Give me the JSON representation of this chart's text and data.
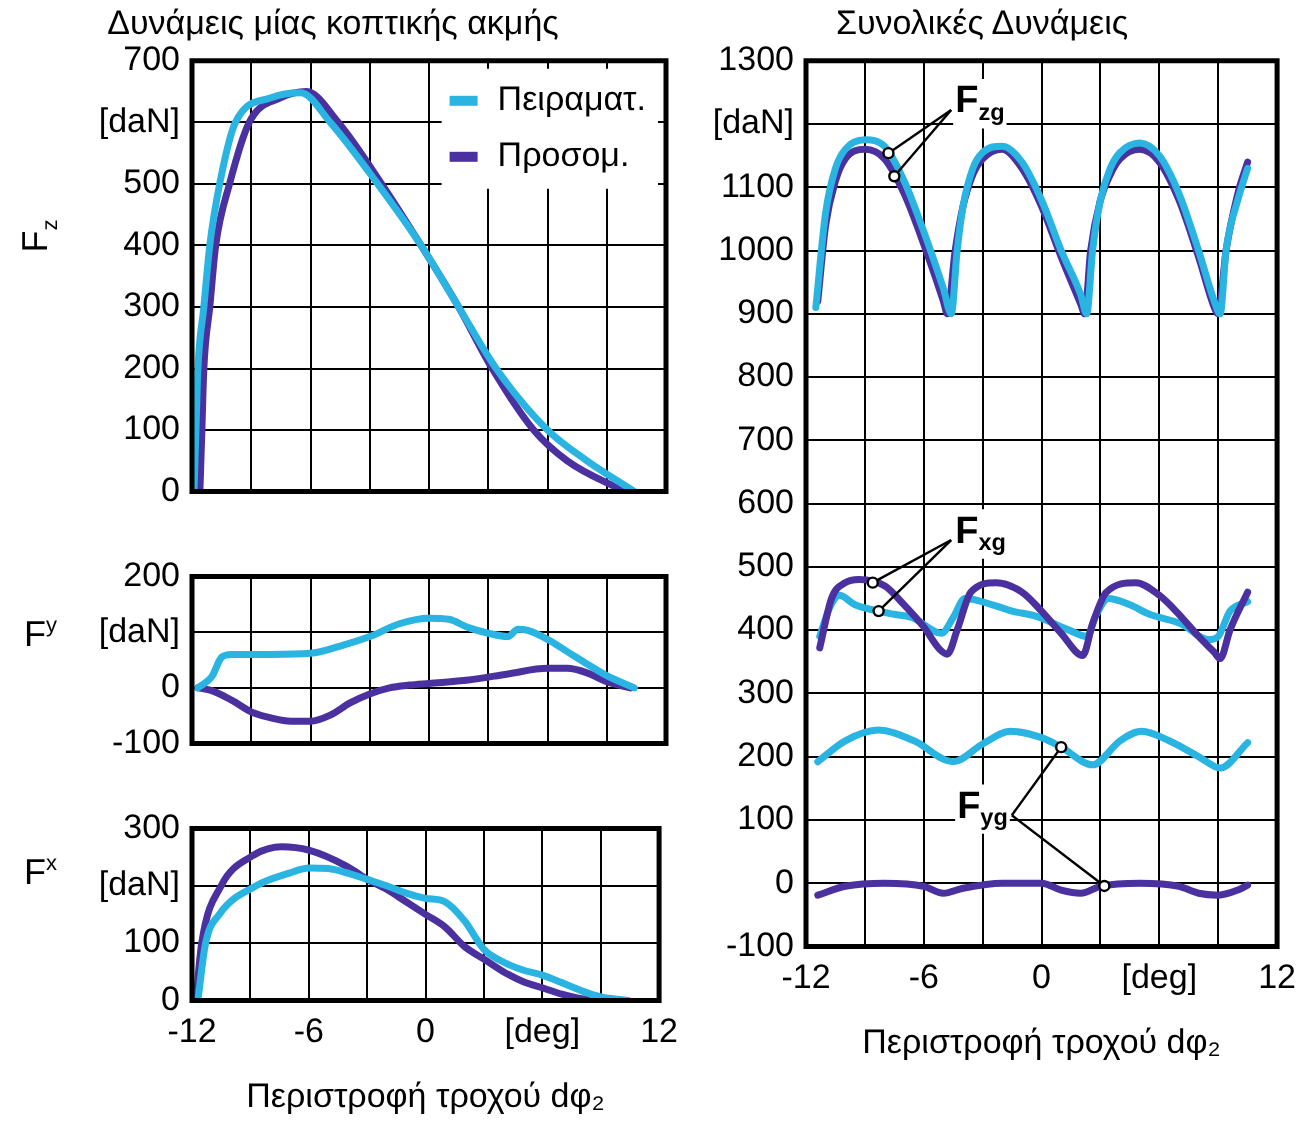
{
  "chart_data": [
    {
      "type": "line",
      "title": "Δυνάμεις μίας κοπτικής ακμής",
      "ylabel": "F$_{z}$",
      "xlim": [
        -12,
        12
      ],
      "xticks": [
        -12,
        -9,
        -6,
        -3,
        0,
        3,
        6,
        9,
        12
      ],
      "ylim": [
        0,
        700
      ],
      "yticks": [
        0,
        100,
        200,
        300,
        400,
        500,
        {
          "value": 600,
          "label": "[daN]"
        },
        700
      ],
      "tick_labels": "y",
      "grid": true,
      "legend": "top right",
      "marker": "none",
      "line_style": "solid",
      "series": [
        {
          "name": "Πειραματ.",
          "color": "#2ab4e2",
          "x": [
            -11.9,
            -11.8,
            -11.7,
            -11.4,
            -11.1,
            -10.6,
            -9.8,
            -8,
            -6.5,
            -5,
            -2.6,
            -0.4,
            1.5,
            3.4,
            6,
            8,
            10.4
          ],
          "values": [
            0,
            100,
            200,
            300,
            400,
            500,
            600,
            640,
            648,
            600,
            500,
            400,
            300,
            200,
            100,
            50,
            0
          ]
        },
        {
          "name": "Προσομ.",
          "color": "#4b31a0",
          "x": [
            -11.6,
            -11.5,
            -11.4,
            -11.1,
            -10.8,
            -10.1,
            -9.1,
            -7.5,
            -6.2,
            -4.6,
            -2.4,
            -0.4,
            1.5,
            3.2,
            5.3,
            7,
            9.9
          ],
          "values": [
            0,
            100,
            200,
            300,
            400,
            500,
            600,
            640,
            650,
            600,
            500,
            400,
            300,
            200,
            100,
            50,
            0
          ]
        }
      ]
    },
    {
      "type": "line",
      "ylabel": "F$^{y}$",
      "xlim": [
        -12,
        12
      ],
      "xticks": [
        -12,
        -9,
        -6,
        -3,
        0,
        3,
        6,
        9,
        12
      ],
      "ylim": [
        -100,
        200
      ],
      "yticks": [
        -100,
        0,
        {
          "value": 100,
          "label": "[daN]"
        },
        200
      ],
      "tick_labels": "y",
      "grid": true,
      "marker": "none",
      "line_style": "solid",
      "series": [
        {
          "color": "#2ab4e2",
          "x": [
            -11.7,
            -11,
            -10.5,
            -10,
            -8,
            -6,
            -4.5,
            -3,
            -1.5,
            0,
            1,
            2,
            3,
            4,
            4.5,
            5,
            6,
            7,
            8,
            9,
            10.4
          ],
          "values": [
            0,
            20,
            55,
            60,
            60,
            62,
            75,
            92,
            115,
            125,
            123,
            108,
            98,
            92,
            105,
            103,
            87,
            65,
            43,
            22,
            0
          ]
        },
        {
          "color": "#4b31a0",
          "x": [
            -11.7,
            -11,
            -10,
            -9,
            -8,
            -7,
            -6,
            -5,
            -4,
            -3,
            -2,
            -1,
            0,
            2,
            4,
            6,
            7,
            8,
            9,
            10.2
          ],
          "values": [
            0,
            -5,
            -22,
            -43,
            -54,
            -60,
            -60,
            -49,
            -27,
            -11,
            0,
            5,
            8,
            14,
            25,
            35,
            35,
            27,
            11,
            0
          ]
        }
      ]
    },
    {
      "type": "line",
      "ylabel": "F$^{x}$",
      "xlabel": "Περιστροφή τροχού dφ₂",
      "xlim": [
        -12,
        12
      ],
      "xticks": [
        -12,
        {
          "value": -9,
          "label": null
        },
        -6,
        {
          "value": -3,
          "label": null
        },
        0,
        {
          "value": 3,
          "label": null
        },
        {
          "value": 6,
          "label": "[deg]"
        },
        {
          "value": 9,
          "label": null
        },
        12
      ],
      "ylim": [
        0,
        300
      ],
      "yticks": [
        0,
        100,
        {
          "value": 200,
          "label": "[daN]"
        },
        300
      ],
      "grid": true,
      "marker": "none",
      "line_style": "solid",
      "series": [
        {
          "color": "#2ab4e2",
          "x": [
            -11.7,
            -11.3,
            -10.6,
            -8.7,
            -7,
            -6,
            -5,
            -4,
            -3,
            -2,
            -1,
            0,
            1,
            2,
            3,
            4,
            5,
            6,
            7,
            8,
            9,
            10.4
          ],
          "values": [
            0,
            100,
            150,
            200,
            222,
            231,
            230,
            222,
            211,
            200,
            187,
            178,
            172,
            139,
            89,
            67,
            53,
            44,
            31,
            17,
            6,
            0
          ]
        },
        {
          "color": "#4b31a0",
          "x": [
            -11.8,
            -11.5,
            -10.5,
            -9,
            -7.4,
            -6,
            -4,
            -3,
            -2,
            -1,
            0,
            1,
            2,
            3,
            4,
            5,
            6,
            7,
            8,
            9
          ],
          "values": [
            0,
            100,
            200,
            250,
            268,
            262,
            233,
            211,
            194,
            172,
            150,
            128,
            94,
            72,
            50,
            33,
            22,
            11,
            3,
            0
          ]
        }
      ]
    },
    {
      "type": "line",
      "title": "Συνολικές Δυνάμεις",
      "xlabel": "Περιστροφή τροχού dφ₂",
      "xlim": [
        -12,
        12
      ],
      "xticks": [
        -12,
        {
          "value": -9,
          "label": null
        },
        -6,
        {
          "value": -3,
          "label": null
        },
        0,
        {
          "value": 3,
          "label": null
        },
        {
          "value": 6,
          "label": "[deg]"
        },
        {
          "value": 9,
          "label": null
        },
        12
      ],
      "ylim": [
        -100,
        1300
      ],
      "yticks": [
        -100,
        0,
        100,
        200,
        300,
        400,
        500,
        600,
        700,
        800,
        900,
        1000,
        1100,
        {
          "value": 1200,
          "label": "[daN]"
        },
        1300
      ],
      "grid": true,
      "marker": "none",
      "line_style": "solid",
      "annotations": [
        {
          "text": "F$_{zg}$",
          "x": -7.8,
          "y": 1154
        },
        {
          "text": "F$_{xg}$",
          "x": -8.6,
          "y": 475
        },
        {
          "text": "F$_{yg}$",
          "x": 1.0,
          "y": 215
        }
      ],
      "series": [
        {
          "color": "#2ab4e2",
          "x": [
            -11.5,
            -11,
            -10.5,
            -10,
            -9,
            -8,
            -7,
            -6,
            -5,
            -4.6,
            -4.3,
            -4,
            -3.5,
            -3,
            -2,
            -1,
            0,
            1,
            2,
            2.3,
            2.6,
            3,
            3.5,
            4,
            5,
            6,
            7,
            8,
            8.8,
            9.1,
            9.4,
            10,
            10.5
          ],
          "values": [
            910,
            1060,
            1130,
            1160,
            1175,
            1165,
            1110,
            1030,
            940,
            900,
            1000,
            1070,
            1130,
            1155,
            1165,
            1140,
            1080,
            1000,
            930,
            900,
            1000,
            1080,
            1130,
            1155,
            1170,
            1150,
            1090,
            1000,
            920,
            900,
            1000,
            1080,
            1130
          ]
        },
        {
          "color": "#4b31a0",
          "x": [
            -11.4,
            -11,
            -10.5,
            -10,
            -9,
            -8,
            -7,
            -6,
            -5,
            -4.8,
            -4.4,
            -4,
            -3.5,
            -3,
            -2,
            -1,
            0,
            1,
            2,
            2.2,
            2.5,
            3,
            3.5,
            4,
            5,
            6,
            7,
            8,
            8.8,
            9,
            9.4,
            10,
            10.5
          ],
          "values": [
            920,
            1040,
            1110,
            1145,
            1160,
            1145,
            1090,
            1010,
            920,
            900,
            1000,
            1070,
            1120,
            1145,
            1160,
            1130,
            1070,
            990,
            915,
            900,
            1000,
            1080,
            1120,
            1145,
            1160,
            1140,
            1080,
            990,
            910,
            900,
            1000,
            1090,
            1140
          ]
        },
        {
          "color": "#4b31a0",
          "x": [
            -11.3,
            -10.7,
            -10,
            -9.3,
            -8,
            -7,
            -6,
            -5.2,
            -4.8,
            -4.3,
            -3.6,
            -2.3,
            -1,
            0,
            1,
            2.1,
            2.6,
            3.3,
            4.8,
            6,
            7,
            8,
            8.8,
            9.1,
            9.6,
            10.5
          ],
          "values": [
            372,
            450,
            475,
            480,
            470,
            440,
            405,
            370,
            362,
            400,
            460,
            475,
            460,
            430,
            395,
            360,
            410,
            460,
            475,
            455,
            425,
            390,
            365,
            355,
            400,
            460
          ]
        },
        {
          "color": "#2ab4e2",
          "x": [
            -11.3,
            -10.8,
            -10.3,
            -9.5,
            -8.6,
            -7.5,
            -6.6,
            -5.1,
            -4.5,
            -3.9,
            -2.5,
            -1.5,
            -0.3,
            1.4,
            2.3,
            2.8,
            3.4,
            4.5,
            5.5,
            7.1,
            8.5,
            9,
            9.6,
            10.5
          ],
          "values": [
            390,
            435,
            455,
            440,
            432,
            425,
            420,
            395,
            420,
            450,
            440,
            430,
            422,
            400,
            390,
            425,
            450,
            440,
            425,
            410,
            385,
            390,
            430,
            445
          ]
        },
        {
          "color": "#2ab4e2",
          "x": [
            -11.4,
            -10,
            -8.3,
            -6.5,
            -4.5,
            -3,
            -1.6,
            0,
            1,
            2.6,
            4,
            5.1,
            6.5,
            8,
            9.1,
            10.5
          ],
          "values": [
            192,
            225,
            242,
            225,
            192,
            220,
            240,
            230,
            215,
            187,
            225,
            240,
            225,
            200,
            182,
            222
          ]
        },
        {
          "color": "#4b31a0",
          "x": [
            -11.4,
            -10,
            -8,
            -6,
            -5,
            -4,
            -2,
            0,
            1,
            2,
            3,
            5,
            7,
            8,
            9,
            10,
            10.5
          ],
          "values": [
            -19,
            -5,
            0,
            -5,
            -16,
            -8,
            0,
            0,
            -11,
            -16,
            -5,
            0,
            -5,
            -16,
            -19,
            -11,
            -3
          ]
        }
      ]
    }
  ]
}
